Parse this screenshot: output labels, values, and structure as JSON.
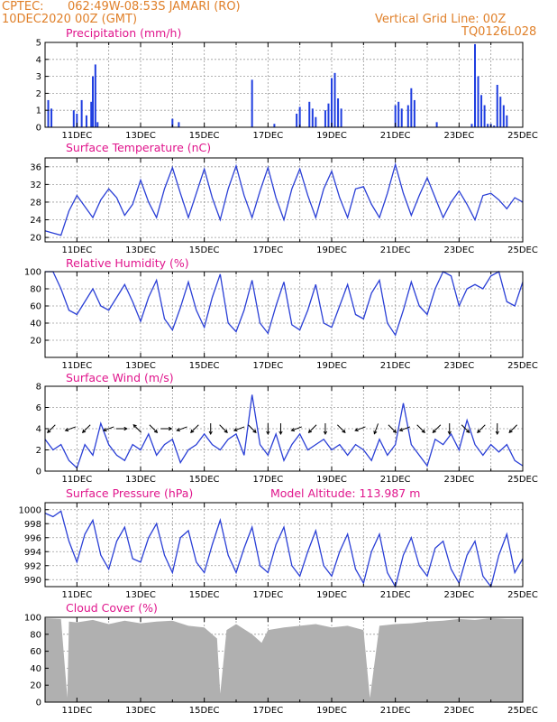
{
  "header": {
    "source": "CPTEC:",
    "location": "062:49W-08:53S  JAMARI (RO)",
    "run": "10DEC2020 00Z (GMT)",
    "grid_note": "Vertical Grid Line: 00Z",
    "model": "TQ0126L028"
  },
  "colors": {
    "header": "#e0802a",
    "title": "#e0158c",
    "line": "#2a3fd6",
    "bar": "#1f3ee0",
    "cloud": "#b0b0b0",
    "grid": "#9a9a9a"
  },
  "date_labels": [
    "11DEC",
    "13DEC",
    "15DEC",
    "17DEC",
    "19DEC",
    "21DEC",
    "23DEC",
    "25DEC"
  ],
  "chart_data": [
    {
      "id": "precip",
      "type": "bar",
      "title": "Precipitation (mm/h)",
      "ylim": [
        0,
        5
      ],
      "yticks": [
        "0",
        "1",
        "2",
        "3",
        "4",
        "5"
      ],
      "x_unit": "days since 10DEC2020 00Z",
      "series": [
        {
          "x": [
            0.1,
            0.2,
            0.9,
            1.0,
            1.15,
            1.3,
            1.45,
            1.5,
            1.58,
            1.65,
            4.0,
            4.2,
            6.5,
            7.2,
            7.9,
            8.0,
            8.3,
            8.4,
            8.5,
            8.8,
            8.9,
            9.0,
            9.1,
            9.2,
            9.3,
            11.0,
            11.1,
            11.2,
            11.4,
            11.5,
            11.6,
            12.3,
            13.4,
            13.5,
            13.6,
            13.7,
            13.8,
            13.9,
            14.0,
            14.1,
            14.2,
            14.3,
            14.4,
            14.5
          ],
          "values": [
            1.6,
            1.1,
            1.0,
            0.8,
            1.6,
            0.7,
            1.5,
            3.0,
            3.7,
            0.3,
            0.5,
            0.3,
            2.8,
            0.2,
            0.8,
            1.2,
            1.5,
            1.1,
            0.6,
            1.0,
            1.4,
            2.9,
            3.2,
            1.7,
            1.1,
            1.3,
            1.5,
            1.1,
            1.3,
            2.3,
            1.6,
            0.3,
            0.2,
            4.9,
            3.0,
            1.9,
            1.3,
            0.2,
            0.2,
            0.1,
            2.5,
            1.8,
            1.3,
            0.7
          ]
        }
      ]
    },
    {
      "id": "temp",
      "type": "line",
      "title": "Surface Temperature (nC)",
      "ylim": [
        19,
        38
      ],
      "yticks": [
        "20",
        "24",
        "28",
        "32",
        "36"
      ],
      "x_unit": "days since 10DEC2020 00Z",
      "series": [
        {
          "x": [
            0,
            0.25,
            0.5,
            0.75,
            1.0,
            1.25,
            1.5,
            1.75,
            2.0,
            2.25,
            2.5,
            2.75,
            3.0,
            3.25,
            3.5,
            3.75,
            4.0,
            4.25,
            4.5,
            4.75,
            5.0,
            5.25,
            5.5,
            5.75,
            6.0,
            6.25,
            6.5,
            6.75,
            7.0,
            7.25,
            7.5,
            7.75,
            8.0,
            8.25,
            8.5,
            8.75,
            9.0,
            9.25,
            9.5,
            9.75,
            10.0,
            10.25,
            10.5,
            10.75,
            11.0,
            11.25,
            11.5,
            11.75,
            12.0,
            12.25,
            12.5,
            12.75,
            13.0,
            13.25,
            13.5,
            13.75,
            14.0,
            14.25,
            14.5,
            14.75,
            15.0
          ],
          "values": [
            21.5,
            21.0,
            20.5,
            26.0,
            29.5,
            27.0,
            24.5,
            28.5,
            31.0,
            29.0,
            25.0,
            27.5,
            33.0,
            28.0,
            24.5,
            31.0,
            35.8,
            30.0,
            24.5,
            30.0,
            35.5,
            29.0,
            24.0,
            31.0,
            36.2,
            29.5,
            24.5,
            30.5,
            35.8,
            29.0,
            24.0,
            31.0,
            35.5,
            29.5,
            24.5,
            31.0,
            35.0,
            29.0,
            24.5,
            31.0,
            31.5,
            27.5,
            24.5,
            30.0,
            36.5,
            30.0,
            25.0,
            29.5,
            33.5,
            29.0,
            24.5,
            28.0,
            30.5,
            27.5,
            24.0,
            29.5,
            30.0,
            28.5,
            26.5,
            29.0,
            28.0
          ]
        }
      ]
    },
    {
      "id": "rh",
      "type": "line",
      "title": "Relative Humidity (%)",
      "ylim": [
        0,
        100
      ],
      "yticks": [
        "20",
        "40",
        "60",
        "80",
        "100"
      ],
      "x_unit": "days since 10DEC2020 00Z",
      "series": [
        {
          "x": [
            0,
            0.25,
            0.5,
            0.75,
            1.0,
            1.25,
            1.5,
            1.75,
            2.0,
            2.25,
            2.5,
            2.75,
            3.0,
            3.25,
            3.5,
            3.75,
            4.0,
            4.25,
            4.5,
            4.75,
            5.0,
            5.25,
            5.5,
            5.75,
            6.0,
            6.25,
            6.5,
            6.75,
            7.0,
            7.25,
            7.5,
            7.75,
            8.0,
            8.25,
            8.5,
            8.75,
            9.0,
            9.25,
            9.5,
            9.75,
            10.0,
            10.25,
            10.5,
            10.75,
            11.0,
            11.25,
            11.5,
            11.75,
            12.0,
            12.25,
            12.5,
            12.75,
            13.0,
            13.25,
            13.5,
            13.75,
            14.0,
            14.25,
            14.5,
            14.75,
            15.0
          ],
          "values": [
            100,
            100,
            80,
            55,
            50,
            65,
            80,
            60,
            55,
            70,
            85,
            65,
            42,
            70,
            90,
            45,
            32,
            58,
            88,
            55,
            35,
            70,
            97,
            40,
            30,
            55,
            90,
            40,
            28,
            60,
            88,
            38,
            32,
            55,
            85,
            40,
            35,
            60,
            85,
            50,
            45,
            75,
            90,
            40,
            26,
            55,
            88,
            60,
            50,
            80,
            100,
            95,
            60,
            80,
            85,
            80,
            95,
            100,
            65,
            60,
            88
          ]
        }
      ]
    },
    {
      "id": "wind",
      "type": "line",
      "title": "Surface Wind (m/s)",
      "ylim": [
        0,
        8
      ],
      "yticks": [
        "0",
        "2",
        "4",
        "6",
        "8"
      ],
      "x_unit": "days since 10DEC2020 00Z",
      "series": [
        {
          "x": [
            0,
            0.25,
            0.5,
            0.75,
            1.0,
            1.25,
            1.5,
            1.75,
            2.0,
            2.25,
            2.5,
            2.75,
            3.0,
            3.25,
            3.5,
            3.75,
            4.0,
            4.25,
            4.5,
            4.75,
            5.0,
            5.25,
            5.5,
            5.75,
            6.0,
            6.25,
            6.5,
            6.75,
            7.0,
            7.25,
            7.5,
            7.75,
            8.0,
            8.25,
            8.5,
            8.75,
            9.0,
            9.25,
            9.5,
            9.75,
            10.0,
            10.25,
            10.5,
            10.75,
            11.0,
            11.25,
            11.5,
            11.75,
            12.0,
            12.25,
            12.5,
            12.75,
            13.0,
            13.25,
            13.5,
            13.75,
            14.0,
            14.25,
            14.5,
            14.75,
            15.0
          ],
          "values": [
            3.0,
            2.0,
            2.5,
            1.0,
            0.3,
            2.5,
            1.5,
            4.5,
            2.5,
            1.5,
            1.0,
            2.5,
            2.0,
            3.5,
            1.5,
            2.5,
            3.0,
            0.8,
            2.0,
            2.5,
            3.5,
            2.5,
            2.0,
            3.0,
            3.5,
            1.5,
            7.2,
            2.5,
            1.5,
            3.5,
            1.0,
            2.5,
            3.5,
            2.0,
            2.5,
            3.0,
            2.0,
            2.5,
            1.5,
            2.5,
            2.0,
            1.0,
            3.0,
            1.5,
            2.5,
            6.4,
            2.5,
            1.5,
            0.5,
            3.0,
            2.5,
            3.5,
            2.0,
            4.8,
            2.5,
            1.5,
            2.5,
            1.8,
            2.5,
            1.0,
            0.5
          ]
        },
        {
          "name": "wind_arrows",
          "x": [
            0.2,
            0.8,
            1.3,
            2.0,
            2.4,
            2.9,
            3.4,
            3.8,
            4.3,
            4.7,
            5.2,
            5.6,
            6.1,
            6.5,
            7.0,
            7.4,
            7.9,
            8.4,
            8.8,
            9.3,
            9.9,
            10.4,
            10.9,
            11.3,
            11.8,
            12.3,
            12.7,
            13.2,
            13.7,
            14.2,
            14.7
          ],
          "direction_deg": [
            225,
            200,
            225,
            200,
            0,
            135,
            315,
            0,
            200,
            225,
            270,
            315,
            200,
            315,
            270,
            270,
            200,
            225,
            270,
            315,
            200,
            250,
            315,
            200,
            315,
            225,
            270,
            315,
            225,
            270,
            225
          ]
        }
      ]
    },
    {
      "id": "pressure",
      "type": "line",
      "title": "Surface Pressure (hPa)",
      "subtitle": "Model Altitude: 113.987 m",
      "ylim": [
        989,
        1001
      ],
      "yticks": [
        "990",
        "992",
        "994",
        "996",
        "998",
        "1000"
      ],
      "x_unit": "days since 10DEC2020 00Z",
      "series": [
        {
          "x": [
            0,
            0.25,
            0.5,
            0.75,
            1.0,
            1.25,
            1.5,
            1.75,
            2.0,
            2.25,
            2.5,
            2.75,
            3.0,
            3.25,
            3.5,
            3.75,
            4.0,
            4.25,
            4.5,
            4.75,
            5.0,
            5.25,
            5.5,
            5.75,
            6.0,
            6.25,
            6.5,
            6.75,
            7.0,
            7.25,
            7.5,
            7.75,
            8.0,
            8.25,
            8.5,
            8.75,
            9.0,
            9.25,
            9.5,
            9.75,
            10.0,
            10.25,
            10.5,
            10.75,
            11.0,
            11.25,
            11.5,
            11.75,
            12.0,
            12.25,
            12.5,
            12.75,
            13.0,
            13.25,
            13.5,
            13.75,
            14.0,
            14.25,
            14.5,
            14.75,
            15.0
          ],
          "values": [
            999.5,
            999.0,
            999.8,
            995.5,
            992.5,
            996.5,
            998.5,
            993.5,
            991.5,
            995.5,
            997.5,
            993.0,
            992.5,
            996.0,
            998.0,
            993.5,
            991.0,
            996.0,
            997.0,
            992.5,
            991.0,
            995.0,
            998.5,
            993.5,
            991.0,
            994.5,
            997.5,
            992.0,
            991.0,
            995.0,
            997.5,
            992.0,
            990.5,
            994.0,
            997.0,
            992.0,
            990.5,
            994.0,
            996.5,
            991.5,
            989.5,
            994.0,
            996.5,
            991.0,
            989.0,
            993.5,
            996.0,
            992.0,
            990.5,
            994.5,
            995.5,
            991.5,
            989.5,
            993.5,
            995.5,
            990.5,
            989.0,
            993.5,
            996.5,
            991.0,
            993.0
          ]
        }
      ]
    },
    {
      "id": "cloud",
      "type": "area",
      "title": "Cloud Cover (%)",
      "ylim": [
        0,
        100
      ],
      "yticks": [
        "0",
        "20",
        "40",
        "60",
        "80",
        "100"
      ],
      "x_unit": "days since 10DEC2020 00Z",
      "series": [
        {
          "x": [
            0,
            0.5,
            0.7,
            0.75,
            1.0,
            1.5,
            2.0,
            2.5,
            3.0,
            3.5,
            4.0,
            4.5,
            5.0,
            5.4,
            5.5,
            5.7,
            6.0,
            6.5,
            6.8,
            7.0,
            7.5,
            8.0,
            8.5,
            9.0,
            9.5,
            10.0,
            10.2,
            10.5,
            11.0,
            11.5,
            12.0,
            12.5,
            13.0,
            13.5,
            14.0,
            14.5,
            15.0
          ],
          "values": [
            99,
            98,
            5,
            95,
            94,
            97,
            92,
            96,
            93,
            95,
            96,
            90,
            88,
            75,
            10,
            85,
            92,
            80,
            70,
            85,
            88,
            90,
            92,
            88,
            90,
            85,
            5,
            90,
            92,
            93,
            95,
            96,
            98,
            97,
            99,
            98,
            98
          ]
        }
      ]
    }
  ]
}
